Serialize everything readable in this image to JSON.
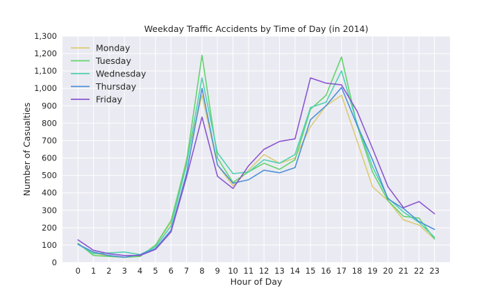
{
  "chart_data": {
    "type": "line",
    "title": "Weekday Traffic Accidents by Time of Day (in 2014)",
    "xlabel": "Hour of Day",
    "ylabel": "Number of Casualties",
    "x": [
      0,
      1,
      2,
      3,
      4,
      5,
      6,
      7,
      8,
      9,
      10,
      11,
      12,
      13,
      14,
      15,
      16,
      17,
      18,
      19,
      20,
      21,
      22,
      23
    ],
    "xticks": [
      "0",
      "1",
      "2",
      "3",
      "4",
      "5",
      "6",
      "7",
      "8",
      "9",
      "10",
      "11",
      "12",
      "13",
      "14",
      "15",
      "16",
      "17",
      "18",
      "19",
      "20",
      "21",
      "22",
      "23"
    ],
    "ylim": [
      0,
      1300
    ],
    "yticks": [
      "0",
      "100",
      "200",
      "300",
      "400",
      "500",
      "600",
      "700",
      "800",
      "900",
      "1,000",
      "1,100",
      "1,200",
      "1,300"
    ],
    "grid": true,
    "legend_position": "top-left",
    "series": [
      {
        "name": "Monday",
        "color": "#d9cb73",
        "values": [
          105,
          55,
          35,
          30,
          35,
          100,
          230,
          590,
          960,
          560,
          440,
          530,
          620,
          570,
          600,
          780,
          900,
          960,
          700,
          435,
          355,
          245,
          215,
          135
        ]
      },
      {
        "name": "Tuesday",
        "color": "#62d36b",
        "values": [
          110,
          40,
          35,
          30,
          35,
          100,
          240,
          580,
          1190,
          600,
          460,
          520,
          570,
          535,
          590,
          880,
          960,
          1180,
          790,
          520,
          355,
          265,
          255,
          135
        ]
      },
      {
        "name": "Wednesday",
        "color": "#4fd1b0",
        "values": [
          105,
          50,
          55,
          60,
          45,
          90,
          210,
          560,
          1060,
          630,
          510,
          520,
          590,
          570,
          620,
          890,
          920,
          1100,
          800,
          550,
          370,
          290,
          230,
          145
        ]
      },
      {
        "name": "Thursday",
        "color": "#4c8fd6",
        "values": [
          105,
          60,
          40,
          30,
          45,
          80,
          185,
          510,
          1000,
          560,
          455,
          475,
          530,
          515,
          545,
          820,
          900,
          1005,
          790,
          590,
          365,
          310,
          235,
          190
        ]
      },
      {
        "name": "Friday",
        "color": "#8a55cf",
        "values": [
          130,
          70,
          50,
          40,
          40,
          75,
          175,
          490,
          835,
          495,
          425,
          555,
          650,
          695,
          710,
          1060,
          1030,
          1020,
          870,
          655,
          435,
          315,
          350,
          280
        ]
      }
    ]
  }
}
